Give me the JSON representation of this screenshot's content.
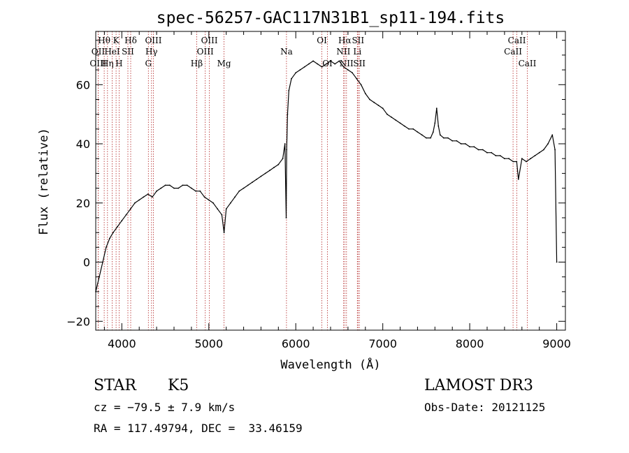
{
  "chart_data": {
    "type": "line",
    "title": "spec-56257-GAC117N31B1_sp11-194.fits",
    "xlabel": "Wavelength (Å)",
    "ylabel": "Flux (relative)",
    "xlim": [
      3700,
      9100
    ],
    "ylim": [
      -23,
      78
    ],
    "xticks": [
      4000,
      5000,
      6000,
      7000,
      8000,
      9000
    ],
    "yticks": [
      -20,
      0,
      20,
      40,
      60
    ],
    "grid": false,
    "line_color": "#000000",
    "marker_color": "#b22222",
    "series": [
      {
        "x": [
          3700,
          3740,
          3780,
          3820,
          3860,
          3900,
          3950,
          4000,
          4050,
          4100,
          4150,
          4200,
          4250,
          4300,
          4350,
          4400,
          4450,
          4500,
          4550,
          4600,
          4650,
          4700,
          4750,
          4800,
          4850,
          4900,
          4950,
          5000,
          5050,
          5100,
          5150,
          5175,
          5200,
          5250,
          5300,
          5350,
          5400,
          5450,
          5500,
          5550,
          5600,
          5650,
          5700,
          5750,
          5800,
          5850,
          5875,
          5890,
          5895,
          5905,
          5920,
          5950,
          6000,
          6050,
          6100,
          6150,
          6200,
          6250,
          6300,
          6350,
          6400,
          6450,
          6500,
          6550,
          6600,
          6650,
          6700,
          6750,
          6800,
          6850,
          6900,
          6950,
          7000,
          7050,
          7100,
          7150,
          7200,
          7250,
          7300,
          7350,
          7400,
          7450,
          7500,
          7550,
          7580,
          7600,
          7620,
          7640,
          7660,
          7700,
          7750,
          7800,
          7850,
          7900,
          7950,
          8000,
          8050,
          8100,
          8150,
          8200,
          8250,
          8300,
          8350,
          8400,
          8450,
          8500,
          8540,
          8560,
          8600,
          8650,
          8700,
          8750,
          8800,
          8850,
          8900,
          8950,
          8980,
          9000
        ],
        "y": [
          -10,
          -5,
          0,
          5,
          8,
          10,
          12,
          14,
          16,
          18,
          20,
          21,
          22,
          23,
          22,
          24,
          25,
          26,
          26,
          25,
          25,
          26,
          26,
          25,
          24,
          24,
          22,
          21,
          20,
          18,
          16,
          10,
          18,
          20,
          22,
          24,
          25,
          26,
          27,
          28,
          29,
          30,
          31,
          32,
          33,
          35,
          40,
          15,
          38,
          50,
          58,
          62,
          64,
          65,
          66,
          67,
          68,
          67,
          66,
          67,
          68,
          67,
          68,
          66,
          65,
          64,
          62,
          60,
          57,
          55,
          54,
          53,
          52,
          50,
          49,
          48,
          47,
          46,
          45,
          45,
          44,
          43,
          42,
          42,
          44,
          47,
          52,
          46,
          43,
          42,
          42,
          41,
          41,
          40,
          40,
          39,
          39,
          38,
          38,
          37,
          37,
          36,
          36,
          35,
          35,
          34,
          34,
          28,
          35,
          34,
          35,
          36,
          37,
          38,
          40,
          43,
          38,
          0
        ]
      }
    ],
    "line_markers": [
      {
        "label": "Hθ",
        "x": 3797,
        "row": 1
      },
      {
        "label": "OII",
        "x": 3727,
        "row": 2
      },
      {
        "label": "OIII",
        "x": 3727,
        "row": 3
      },
      {
        "label": "Hη",
        "x": 3835,
        "row": 3
      },
      {
        "label": "HeI",
        "x": 3889,
        "row": 2
      },
      {
        "label": "K",
        "x": 3934,
        "row": 1
      },
      {
        "label": "SII",
        "x": 4070,
        "row": 2
      },
      {
        "label": "H",
        "x": 3968,
        "row": 3
      },
      {
        "label": "Hδ",
        "x": 4102,
        "row": 1
      },
      {
        "label": "OIII",
        "x": 4363,
        "row": 1
      },
      {
        "label": "Hγ",
        "x": 4341,
        "row": 2
      },
      {
        "label": "G",
        "x": 4305,
        "row": 3
      },
      {
        "label": "Hβ",
        "x": 4861,
        "row": 3
      },
      {
        "label": "OIII",
        "x": 5007,
        "row": 1
      },
      {
        "label": "OIII",
        "x": 4959,
        "row": 2
      },
      {
        "label": "Mg",
        "x": 5175,
        "row": 3
      },
      {
        "label": "Na",
        "x": 5893,
        "row": 2
      },
      {
        "label": "OI",
        "x": 6300,
        "row": 1
      },
      {
        "label": "OI",
        "x": 6364,
        "row": 3
      },
      {
        "label": "Hα",
        "x": 6563,
        "row": 1
      },
      {
        "label": "NII",
        "x": 6548,
        "row": 2
      },
      {
        "label": "NII",
        "x": 6583,
        "row": 3
      },
      {
        "label": "SII",
        "x": 6716,
        "row": 1
      },
      {
        "label": "Li",
        "x": 6708,
        "row": 2
      },
      {
        "label": "SII",
        "x": 6731,
        "row": 3
      },
      {
        "label": "CaII",
        "x": 8542,
        "row": 1
      },
      {
        "label": "CaII",
        "x": 8498,
        "row": 2
      },
      {
        "label": "CaII",
        "x": 8662,
        "row": 3
      }
    ]
  },
  "info": {
    "object_class": "STAR",
    "subclass": "K5",
    "survey": "LAMOST DR3",
    "cz": "cz = −79.5 ± 7.9 km/s",
    "obs_date": "Obs-Date: 20121125",
    "coords": "RA = 117.49794, DEC =  33.46159"
  }
}
